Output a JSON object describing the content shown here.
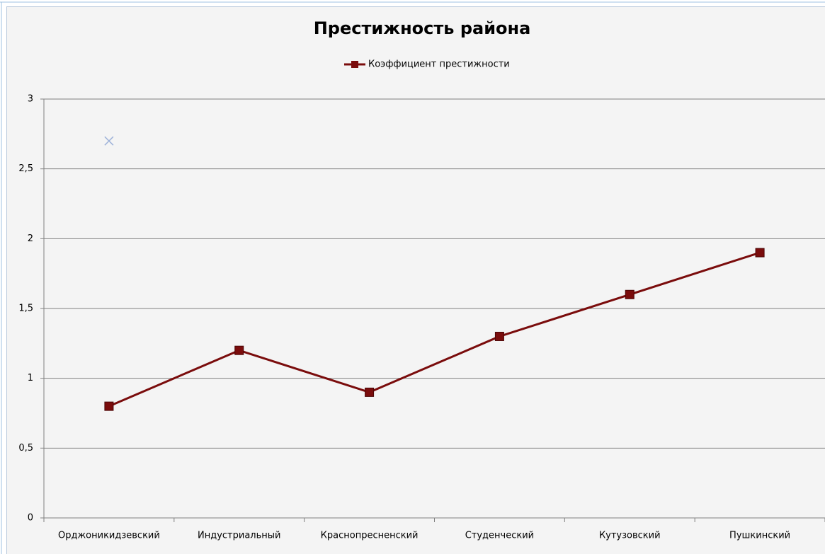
{
  "chart_data": {
    "type": "line",
    "title": "Престижность района",
    "categories": [
      "Орджоникидзевский",
      "Индустриальный",
      "Краснопресненский",
      "Студенческий",
      "Кутузовский",
      "Пушкинский"
    ],
    "series": [
      {
        "name": "Коэффициент престижности",
        "color": "#7a0c0c",
        "marker": "square",
        "values": [
          0.8,
          1.2,
          0.9,
          1.3,
          1.6,
          1.9
        ]
      },
      {
        "color": "#9fb3d9",
        "marker": "x",
        "values": [
          2.7,
          null,
          null,
          null,
          null,
          null
        ]
      }
    ],
    "ylim": [
      0,
      3
    ],
    "yticks": [
      0,
      {
        "value": 0.5,
        "label": "0,5"
      },
      1,
      {
        "value": 1.5,
        "label": "1,5"
      },
      2,
      {
        "value": 2.5,
        "label": "2,5"
      },
      3
    ],
    "grid": true,
    "legend": "top"
  }
}
